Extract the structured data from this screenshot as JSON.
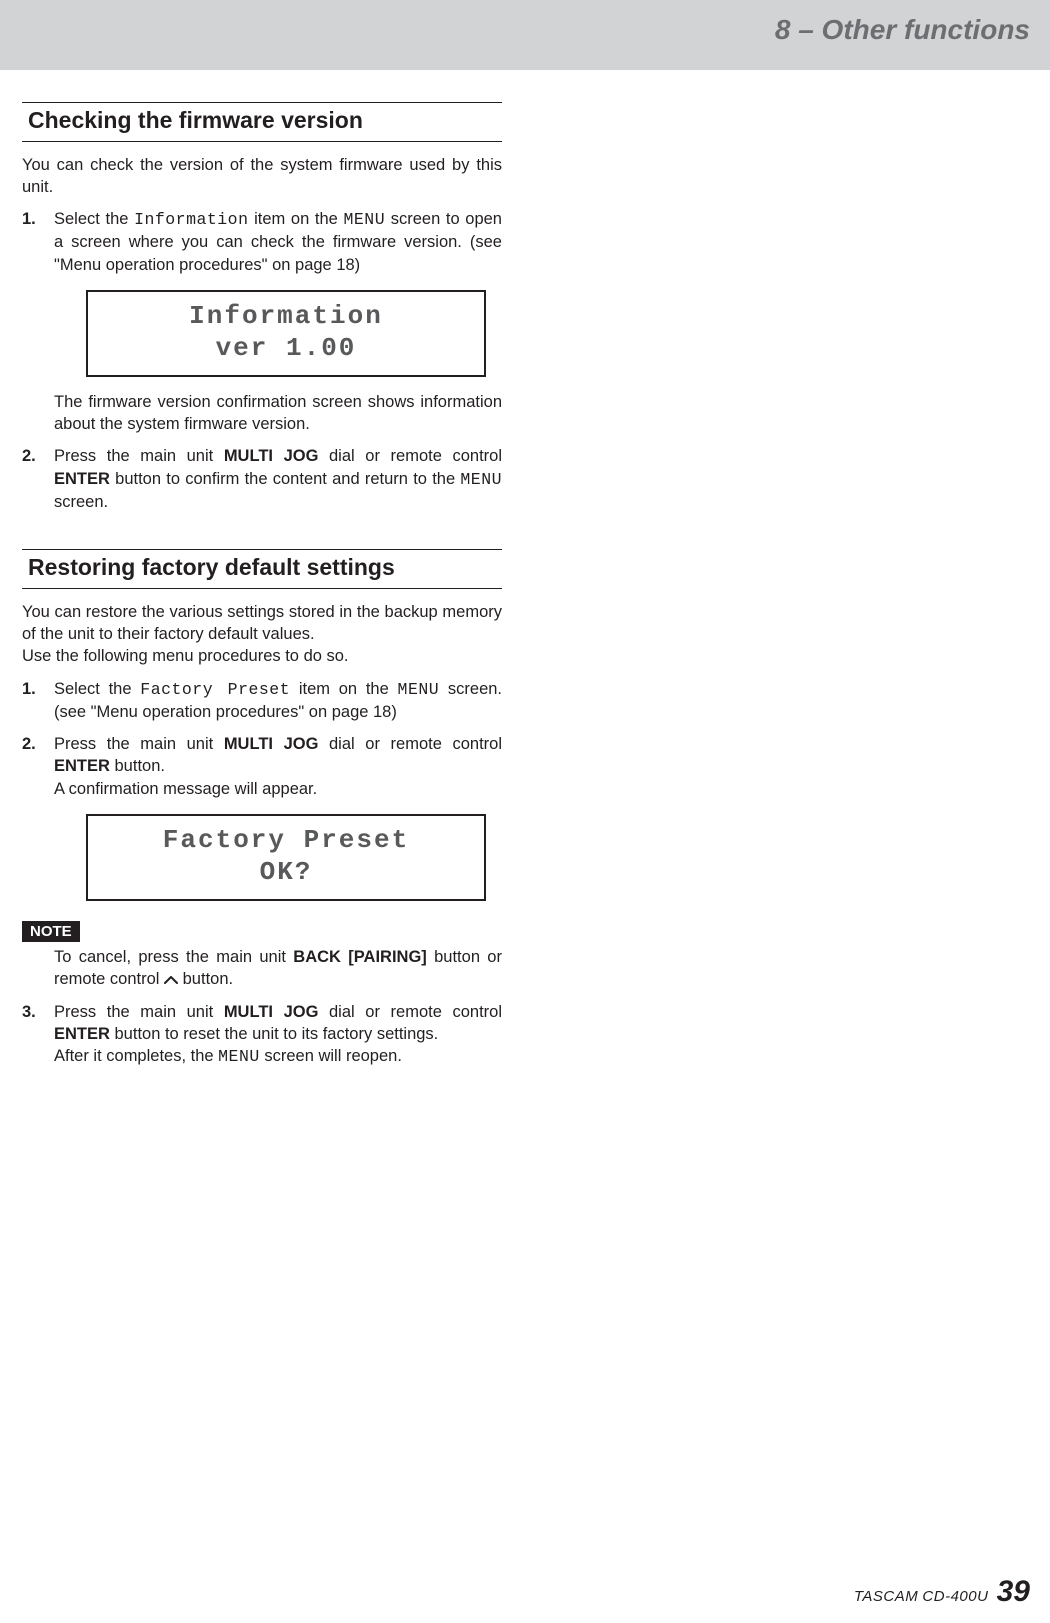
{
  "header": {
    "chapter": "8 – Other functions"
  },
  "sections": [
    {
      "heading": "Checking the firmware version",
      "intro": "You can check the version of the system firmware used by this unit.",
      "steps": [
        {
          "num": "1.",
          "parts": [
            {
              "t": "Select the "
            },
            {
              "t": "Information",
              "cls": "lcd"
            },
            {
              "t": " item on the "
            },
            {
              "t": "MENU",
              "cls": "lcd"
            },
            {
              "t": " screen to open a screen where you can check the firmware version. (see \"Menu operation procedures\" on page 18)"
            }
          ],
          "lcd": [
            "Information",
            " ver 1.00"
          ],
          "after": "The firmware version confirmation screen shows information about the system firmware version."
        },
        {
          "num": "2.",
          "parts": [
            {
              "t": "Press the main unit "
            },
            {
              "t": "MULTI JOG",
              "cls": "b"
            },
            {
              "t": " dial or remote control "
            },
            {
              "t": "ENTER",
              "cls": "b"
            },
            {
              "t": " button to confirm the content and return to the "
            },
            {
              "t": "MENU",
              "cls": "lcd"
            },
            {
              "t": " screen."
            }
          ]
        }
      ]
    },
    {
      "heading": "Restoring factory default settings",
      "intro": "You can restore the various settings stored in the backup memory of the unit to their factory default values.\nUse the following menu procedures to do so.",
      "steps": [
        {
          "num": "1.",
          "parts": [
            {
              "t": "Select the "
            },
            {
              "t": "Factory Preset",
              "cls": "lcd"
            },
            {
              "t": " item on the "
            },
            {
              "t": "MENU",
              "cls": "lcd"
            },
            {
              "t": " screen.  (see \"Menu operation procedures\" on page 18)"
            }
          ]
        },
        {
          "num": "2.",
          "parts": [
            {
              "t": "Press the main unit "
            },
            {
              "t": "MULTI JOG",
              "cls": "b"
            },
            {
              "t": " dial or remote control "
            },
            {
              "t": "ENTER",
              "cls": "b"
            },
            {
              "t": " button.\nA confirmation message will appear."
            }
          ],
          "lcd": [
            "Factory Preset",
            "OK?"
          ]
        }
      ],
      "note": {
        "label": "NOTE",
        "parts": [
          {
            "t": "To cancel, press the main unit "
          },
          {
            "t": "BACK [PAIRING]",
            "cls": "b"
          },
          {
            "t": " button or remote control "
          },
          {
            "t": "__CARET__"
          },
          {
            "t": " button."
          }
        ]
      },
      "steps2": [
        {
          "num": "3.",
          "parts": [
            {
              "t": "Press the main unit "
            },
            {
              "t": "MULTI JOG",
              "cls": "b"
            },
            {
              "t": " dial or remote control "
            },
            {
              "t": "ENTER",
              "cls": "b"
            },
            {
              "t": " button to reset the unit to its factory settings.\nAfter it completes, the "
            },
            {
              "t": "MENU",
              "cls": "lcd"
            },
            {
              "t": " screen will reopen."
            }
          ]
        }
      ]
    }
  ],
  "footer": {
    "brand": "TASCAM",
    "model": "CD-400U",
    "page": "39"
  }
}
